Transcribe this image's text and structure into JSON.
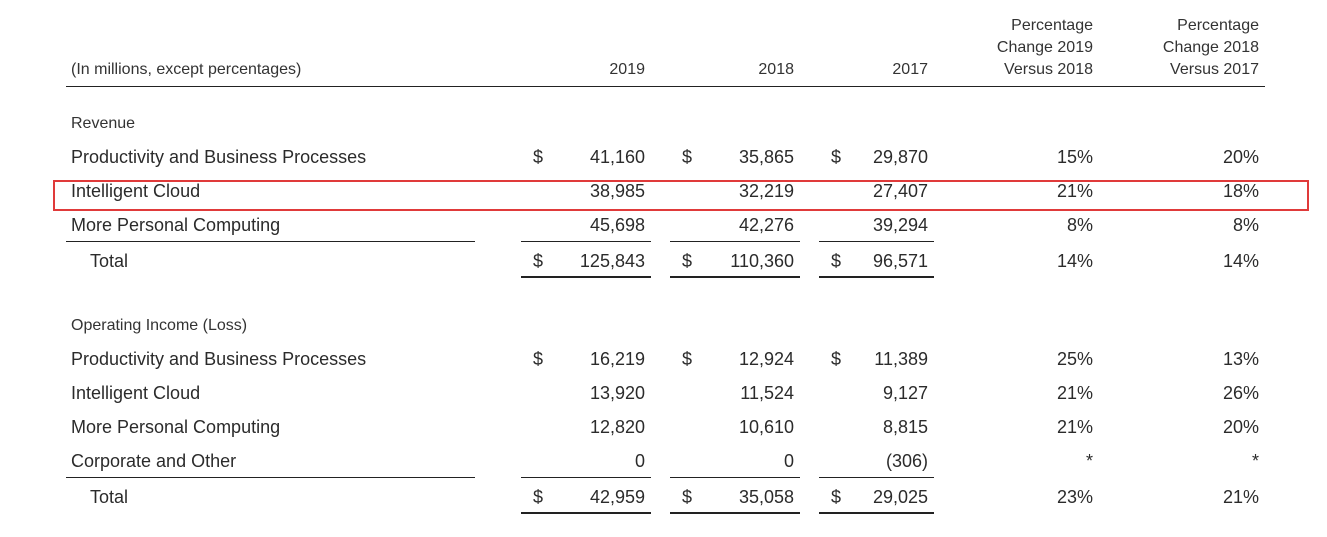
{
  "header": {
    "units": "(In millions, except percentages)",
    "col_2019": "2019",
    "col_2018": "2018",
    "col_2017": "2017",
    "pct_1": [
      "Percentage",
      "Change 2019",
      "Versus 2018"
    ],
    "pct_2": [
      "Percentage",
      "Change 2018",
      "Versus 2017"
    ]
  },
  "currency_symbol": "$",
  "revenue": {
    "section_label": "Revenue",
    "rows": [
      {
        "label": "Productivity and Business Processes",
        "v2019": "41,160",
        "v2018": "35,865",
        "v2017": "29,870",
        "pct1": "15%",
        "pct2": "20%"
      },
      {
        "label": "Intelligent Cloud",
        "v2019": "38,985",
        "v2018": "32,219",
        "v2017": "27,407",
        "pct1": "21%",
        "pct2": "18%"
      },
      {
        "label": "More Personal Computing",
        "v2019": "45,698",
        "v2018": "42,276",
        "v2017": "39,294",
        "pct1": "8%",
        "pct2": "8%"
      }
    ],
    "total": {
      "label": "Total",
      "v2019": "125,843",
      "v2018": "110,360",
      "v2017": "96,571",
      "pct1": "14%",
      "pct2": "14%"
    }
  },
  "operating_income": {
    "section_label": "Operating Income (Loss)",
    "rows": [
      {
        "label": "Productivity and Business Processes",
        "v2019": "16,219",
        "v2018": "12,924",
        "v2017": "11,389",
        "pct1": "25%",
        "pct2": "13%"
      },
      {
        "label": "Intelligent Cloud",
        "v2019": "13,920",
        "v2018": "11,524",
        "v2017": "9,127",
        "pct1": "21%",
        "pct2": "26%"
      },
      {
        "label": "More Personal Computing",
        "v2019": "12,820",
        "v2018": "10,610",
        "v2017": "8,815",
        "pct1": "21%",
        "pct2": "20%"
      },
      {
        "label": "Corporate and Other",
        "v2019": "0",
        "v2018": "0",
        "v2017": "(306)",
        "pct1": "*",
        "pct2": "*"
      }
    ],
    "total": {
      "label": "Total",
      "v2019": "42,959",
      "v2018": "35,058",
      "v2017": "29,025",
      "pct1": "23%",
      "pct2": "21%"
    }
  },
  "highlight": {
    "color": "#e03a3a"
  }
}
